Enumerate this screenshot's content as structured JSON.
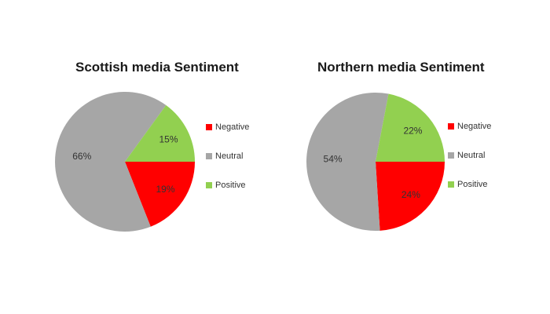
{
  "chart_data": [
    {
      "type": "pie",
      "title": "Scottish media Sentiment",
      "categories": [
        "Negative",
        "Neutral",
        "Positive"
      ],
      "values": [
        19,
        66,
        15
      ],
      "labels": [
        "19%",
        "66%",
        "15%"
      ],
      "colors": [
        "#ff0000",
        "#a6a6a6",
        "#92d050"
      ],
      "legend_position": "right"
    },
    {
      "type": "pie",
      "title": "Northern media Sentiment",
      "categories": [
        "Negative",
        "Neutral",
        "Positive"
      ],
      "values": [
        24,
        54,
        22
      ],
      "labels": [
        "24%",
        "54%",
        "22%"
      ],
      "colors": [
        "#ff0000",
        "#a6a6a6",
        "#92d050"
      ],
      "legend_position": "right"
    }
  ]
}
